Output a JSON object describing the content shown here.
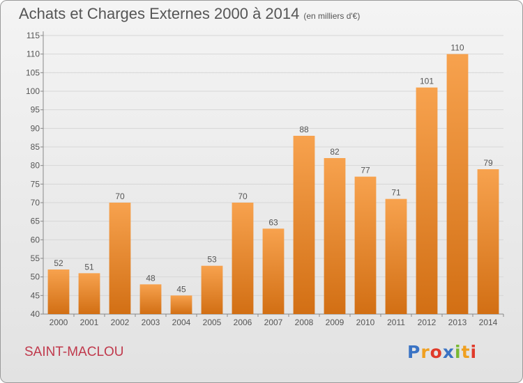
{
  "title": "Achats et Charges Externes 2000 à 2014",
  "unit": "(en milliers d'€)",
  "commune": "SAINT-MACLOU",
  "logo": {
    "letters": [
      "P",
      "r",
      "o",
      "x",
      "i",
      "t",
      "i"
    ],
    "colors": [
      "#3a73c4",
      "#f0a020",
      "#e03a2a",
      "#3a73c4",
      "#78b832",
      "#f0a020",
      "#e03a2a"
    ]
  },
  "colors": {
    "bar_top": "#f7a24e",
    "bar_bottom": "#d26f14",
    "grid": "#d6d6d6",
    "text": "#555555"
  },
  "chart_data": {
    "type": "bar",
    "title": "Achats et Charges Externes 2000 à 2014",
    "subtitle": "(en milliers d'€)",
    "xlabel": "",
    "ylabel": "",
    "categories": [
      "2000",
      "2001",
      "2002",
      "2003",
      "2004",
      "2005",
      "2006",
      "2007",
      "2008",
      "2009",
      "2010",
      "2011",
      "2012",
      "2013",
      "2014"
    ],
    "values": [
      52,
      51,
      70,
      48,
      45,
      53,
      70,
      63,
      88,
      82,
      77,
      71,
      101,
      110,
      79
    ],
    "ylim": [
      40,
      115
    ],
    "yticks": [
      40,
      45,
      50,
      55,
      60,
      65,
      70,
      75,
      80,
      85,
      90,
      95,
      100,
      105,
      110,
      115
    ],
    "grid": true,
    "legend": "none"
  }
}
